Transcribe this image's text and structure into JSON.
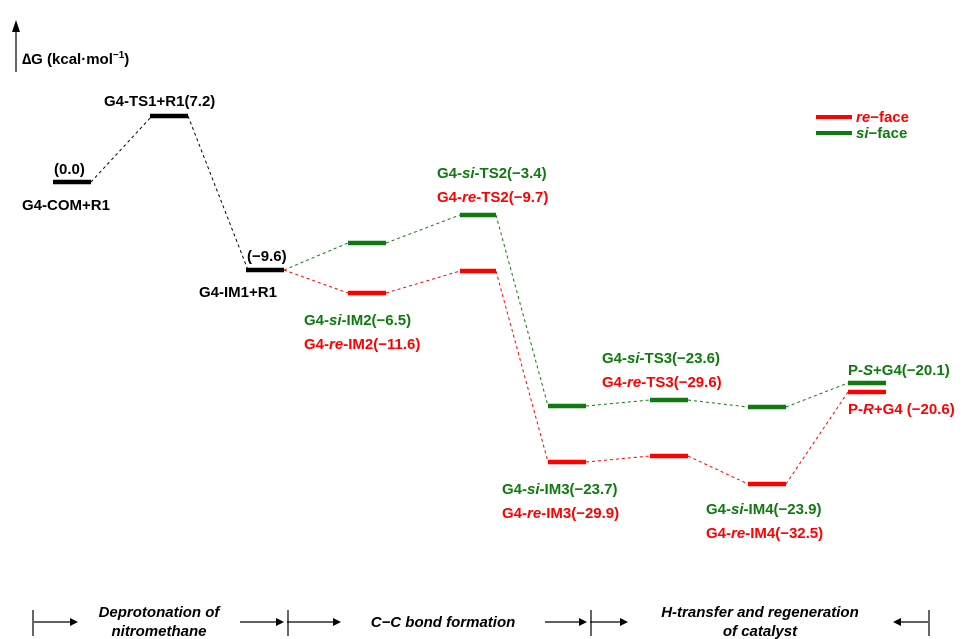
{
  "axis": {
    "delta": "∆G",
    "unit_open": " (kcal·mol",
    "unit_sup": "−1",
    "unit_close": ")"
  },
  "colors": {
    "black": "#000000",
    "green": "#0f7a0f",
    "red": "#ff0000"
  },
  "legend": {
    "re": {
      "italic": "re",
      "rest": "−face"
    },
    "si": {
      "italic": "si",
      "rest": "−face"
    }
  },
  "states": {
    "com": {
      "label": "G4-COM+R1",
      "value": "(0.0)"
    },
    "ts1": {
      "label": "G4-TS1+R1(7.2)"
    },
    "im1": {
      "label": "G4-IM1+R1",
      "value": "(−9.6)"
    },
    "si_ts2": {
      "pre": "G4-",
      "mid": "si",
      "post": "-TS2(−3.4)"
    },
    "re_ts2": {
      "pre": "G4-",
      "mid": "re",
      "post": "-TS2(−9.7)"
    },
    "si_im2": {
      "pre": "G4-",
      "mid": "si",
      "post": "-IM2(−6.5)"
    },
    "re_im2": {
      "pre": "G4-",
      "mid": "re",
      "post": "-IM2(−11.6)"
    },
    "si_ts3": {
      "pre": "G4-",
      "mid": "si",
      "post": "-TS3(−23.6)"
    },
    "re_ts3": {
      "pre": "G4-",
      "mid": "re",
      "post": "-TS3(−29.6)"
    },
    "si_im3": {
      "pre": "G4-",
      "mid": "si",
      "post": "-IM3(−23.7)"
    },
    "re_im3": {
      "pre": "G4-",
      "mid": "re",
      "post": "-IM3(−29.9)"
    },
    "si_im4": {
      "pre": "G4-",
      "mid": "si",
      "post": "-IM4(−23.9)"
    },
    "re_im4": {
      "pre": "G4-",
      "mid": "re",
      "post": "-IM4(−32.5)"
    },
    "ps": {
      "pre": "P-",
      "mid": "S",
      "post": "+G4(−20.1)"
    },
    "pr": {
      "pre": "P-",
      "mid": "R",
      "post": "+G4 (−20.6)"
    }
  },
  "stages": {
    "s1": {
      "line1": "Deprotonation of",
      "line2": "nitromethane"
    },
    "s2": {
      "line1": "C−C bond formation"
    },
    "s3": {
      "line1": "H-transfer and regeneration",
      "line2": "of catalyst"
    }
  }
}
